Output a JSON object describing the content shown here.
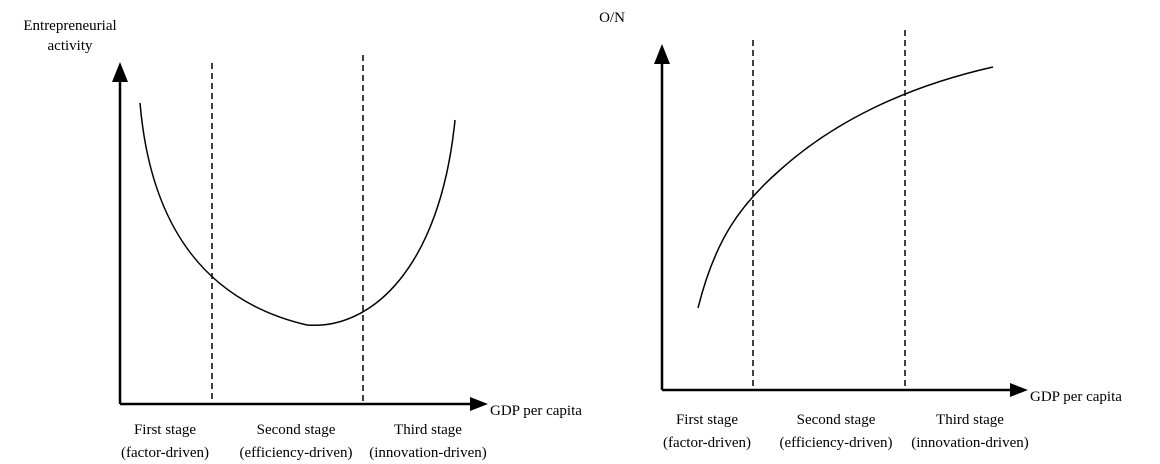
{
  "panels": [
    {
      "y_label": [
        "Entrepreneurial",
        "activity"
      ],
      "x_label": "GDP per capita",
      "stages": [
        {
          "name": "First stage",
          "sub": "(factor-driven)"
        },
        {
          "name": "Second stage",
          "sub": "(efficiency-driven)"
        },
        {
          "name": "Third stage",
          "sub": "(innovation-driven)"
        }
      ]
    },
    {
      "y_label": [
        "O/N"
      ],
      "x_label": "GDP per capita",
      "stages": [
        {
          "name": "First stage",
          "sub": "(factor-driven)"
        },
        {
          "name": "Second stage",
          "sub": "(efficiency-driven)"
        },
        {
          "name": "Third stage",
          "sub": "(innovation-driven)"
        }
      ]
    }
  ]
}
